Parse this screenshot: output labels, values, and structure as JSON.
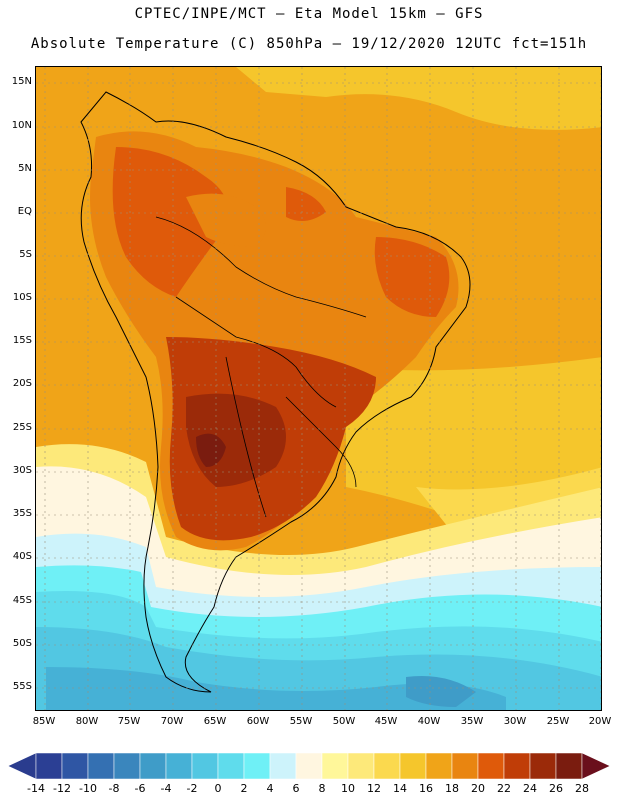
{
  "title": {
    "line1": "CPTEC/INPE/MCT –  Eta Model 15km – GFS",
    "line2": "Absolute Temperature (C) 850hPa – 19/12/2020 12UTC fct=151h"
  },
  "map": {
    "region": "South America",
    "latitude_labels": [
      "15N",
      "10N",
      "5N",
      "EQ",
      "5S",
      "10S",
      "15S",
      "20S",
      "25S",
      "30S",
      "35S",
      "40S",
      "45S",
      "50S",
      "55S"
    ],
    "longitude_labels": [
      "85W",
      "80W",
      "75W",
      "70W",
      "65W",
      "60W",
      "55W",
      "50W",
      "45W",
      "40W",
      "35W",
      "30W",
      "25W",
      "20W"
    ]
  },
  "colorbar": {
    "tick_labels": [
      "-14",
      "-12",
      "-10",
      "-8",
      "-6",
      "-4",
      "-2",
      "0",
      "2",
      "4",
      "6",
      "8",
      "10",
      "12",
      "14",
      "16",
      "18",
      "20",
      "22",
      "24",
      "26",
      "28"
    ],
    "colors": {
      "below": "#2a3c8e",
      "bins": [
        "#2b3f94",
        "#2f56a4",
        "#3470b2",
        "#3a86bd",
        "#3f9cc8",
        "#46b1d6",
        "#52c7e2",
        "#5fdcec",
        "#6ff0f6",
        "#cdf3fb",
        "#fff6e0",
        "#fff79a",
        "#fde97a",
        "#fbd94e",
        "#f5c62c",
        "#f0a418",
        "#e98510",
        "#df5a0a",
        "#c03d07",
        "#9b2a09",
        "#7a1c0f"
      ],
      "above": "#6a0f1c"
    }
  }
}
